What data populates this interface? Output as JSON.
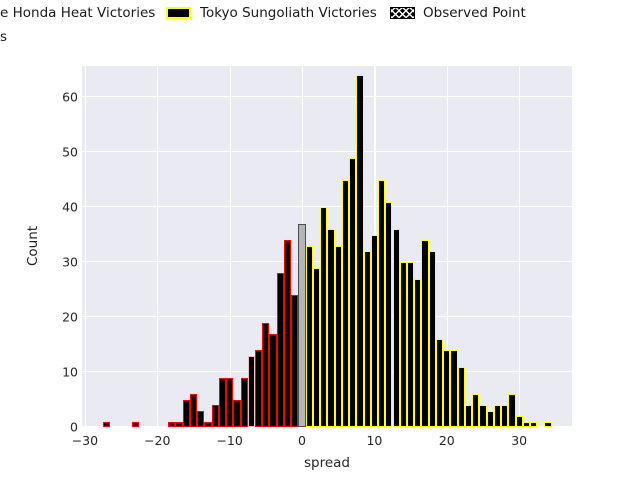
{
  "legend": {
    "row1": [
      {
        "id": "heat",
        "label": "e Honda Heat Victories",
        "note": "swatch clipped off left edge of canvas"
      },
      {
        "id": "sungoliath",
        "label": "Tokyo Sungoliath Victories"
      },
      {
        "id": "observed",
        "label": "Observed Point"
      }
    ],
    "row2_fragment": "s"
  },
  "colors": {
    "plot_bg": "#eaeaf2",
    "grid": "#ffffff",
    "bar_fill": "#000000",
    "heat_edge": "#ff0000",
    "sungoliath_edge": "#ffff00",
    "tie_fill": "#b5b5b5",
    "tie_edge": "#4d4d4d",
    "observed_edge": "#f5bcc8",
    "hatch": "#ffffff",
    "text": "#262626"
  },
  "chart_data": {
    "type": "bar",
    "subtype": "histogram",
    "title": "",
    "xlabel": "spread",
    "ylabel": "Count",
    "xlim": [
      -30.4,
      37.3
    ],
    "ylim": [
      0,
      65.7
    ],
    "bin_width": 1,
    "xticks": [
      -30,
      -20,
      -10,
      0,
      10,
      20,
      30
    ],
    "yticks": [
      0,
      10,
      20,
      30,
      40,
      50,
      60
    ],
    "grid": "on",
    "legend_position": "above-figure",
    "series_styles": {
      "heat": {
        "fill": "#000000",
        "edge": "#ff0000",
        "legend": "e Honda Heat Victories"
      },
      "sungoliath": {
        "fill": "#000000",
        "edge": "#ffff00",
        "legend": "Tokyo Sungoliath Victories"
      },
      "tie": {
        "fill": "#b5b5b5",
        "edge": "#4d4d4d",
        "legend": null
      },
      "observed": {
        "fill": "#000000",
        "edge": "#f5bcc8",
        "hatch": "x",
        "legend": "Observed Point"
      }
    },
    "bars": [
      {
        "x": -27,
        "count": 1,
        "series": "heat"
      },
      {
        "x": -23,
        "count": 1,
        "series": "heat"
      },
      {
        "x": -18,
        "count": 1,
        "series": "heat"
      },
      {
        "x": -17,
        "count": 1,
        "series": "heat"
      },
      {
        "x": -16,
        "count": 5,
        "series": "heat"
      },
      {
        "x": -15,
        "count": 6,
        "series": "heat"
      },
      {
        "x": -14,
        "count": 3,
        "series": "heat"
      },
      {
        "x": -13,
        "count": 1,
        "series": "heat"
      },
      {
        "x": -12,
        "count": 4,
        "series": "heat"
      },
      {
        "x": -11,
        "count": 9,
        "series": "heat"
      },
      {
        "x": -10,
        "count": 9,
        "series": "heat"
      },
      {
        "x": -9,
        "count": 5,
        "series": "heat"
      },
      {
        "x": -8,
        "count": 9,
        "series": "heat"
      },
      {
        "x": -7,
        "count": 13,
        "series": "observed"
      },
      {
        "x": -6,
        "count": 14,
        "series": "heat"
      },
      {
        "x": -5,
        "count": 19,
        "series": "heat"
      },
      {
        "x": -4,
        "count": 17,
        "series": "heat"
      },
      {
        "x": -3,
        "count": 28,
        "series": "heat"
      },
      {
        "x": -2,
        "count": 34,
        "series": "heat"
      },
      {
        "x": -1,
        "count": 24,
        "series": "heat"
      },
      {
        "x": 0,
        "count": 37,
        "series": "tie"
      },
      {
        "x": 1,
        "count": 33,
        "series": "sungoliath"
      },
      {
        "x": 2,
        "count": 29,
        "series": "sungoliath"
      },
      {
        "x": 3,
        "count": 40,
        "series": "sungoliath"
      },
      {
        "x": 4,
        "count": 36,
        "series": "sungoliath"
      },
      {
        "x": 5,
        "count": 33,
        "series": "sungoliath"
      },
      {
        "x": 6,
        "count": 45,
        "series": "sungoliath"
      },
      {
        "x": 7,
        "count": 49,
        "series": "sungoliath"
      },
      {
        "x": 8,
        "count": 64,
        "series": "sungoliath"
      },
      {
        "x": 9,
        "count": 32,
        "series": "sungoliath"
      },
      {
        "x": 10,
        "count": 35,
        "series": "sungoliath"
      },
      {
        "x": 11,
        "count": 45,
        "series": "sungoliath"
      },
      {
        "x": 12,
        "count": 41,
        "series": "sungoliath"
      },
      {
        "x": 13,
        "count": 36,
        "series": "sungoliath"
      },
      {
        "x": 14,
        "count": 30,
        "series": "sungoliath"
      },
      {
        "x": 15,
        "count": 30,
        "series": "sungoliath"
      },
      {
        "x": 16,
        "count": 27,
        "series": "sungoliath"
      },
      {
        "x": 17,
        "count": 34,
        "series": "sungoliath"
      },
      {
        "x": 18,
        "count": 32,
        "series": "sungoliath"
      },
      {
        "x": 19,
        "count": 16,
        "series": "sungoliath"
      },
      {
        "x": 20,
        "count": 14,
        "series": "sungoliath"
      },
      {
        "x": 21,
        "count": 14,
        "series": "sungoliath"
      },
      {
        "x": 22,
        "count": 11,
        "series": "sungoliath"
      },
      {
        "x": 23,
        "count": 4,
        "series": "sungoliath"
      },
      {
        "x": 24,
        "count": 6,
        "series": "sungoliath"
      },
      {
        "x": 25,
        "count": 4,
        "series": "sungoliath"
      },
      {
        "x": 26,
        "count": 3,
        "series": "sungoliath"
      },
      {
        "x": 27,
        "count": 4,
        "series": "sungoliath"
      },
      {
        "x": 28,
        "count": 4,
        "series": "sungoliath"
      },
      {
        "x": 29,
        "count": 6,
        "series": "sungoliath"
      },
      {
        "x": 30,
        "count": 2,
        "series": "sungoliath"
      },
      {
        "x": 31,
        "count": 1,
        "series": "sungoliath"
      },
      {
        "x": 32,
        "count": 1,
        "series": "sungoliath"
      },
      {
        "x": 34,
        "count": 1,
        "series": "sungoliath"
      }
    ]
  }
}
